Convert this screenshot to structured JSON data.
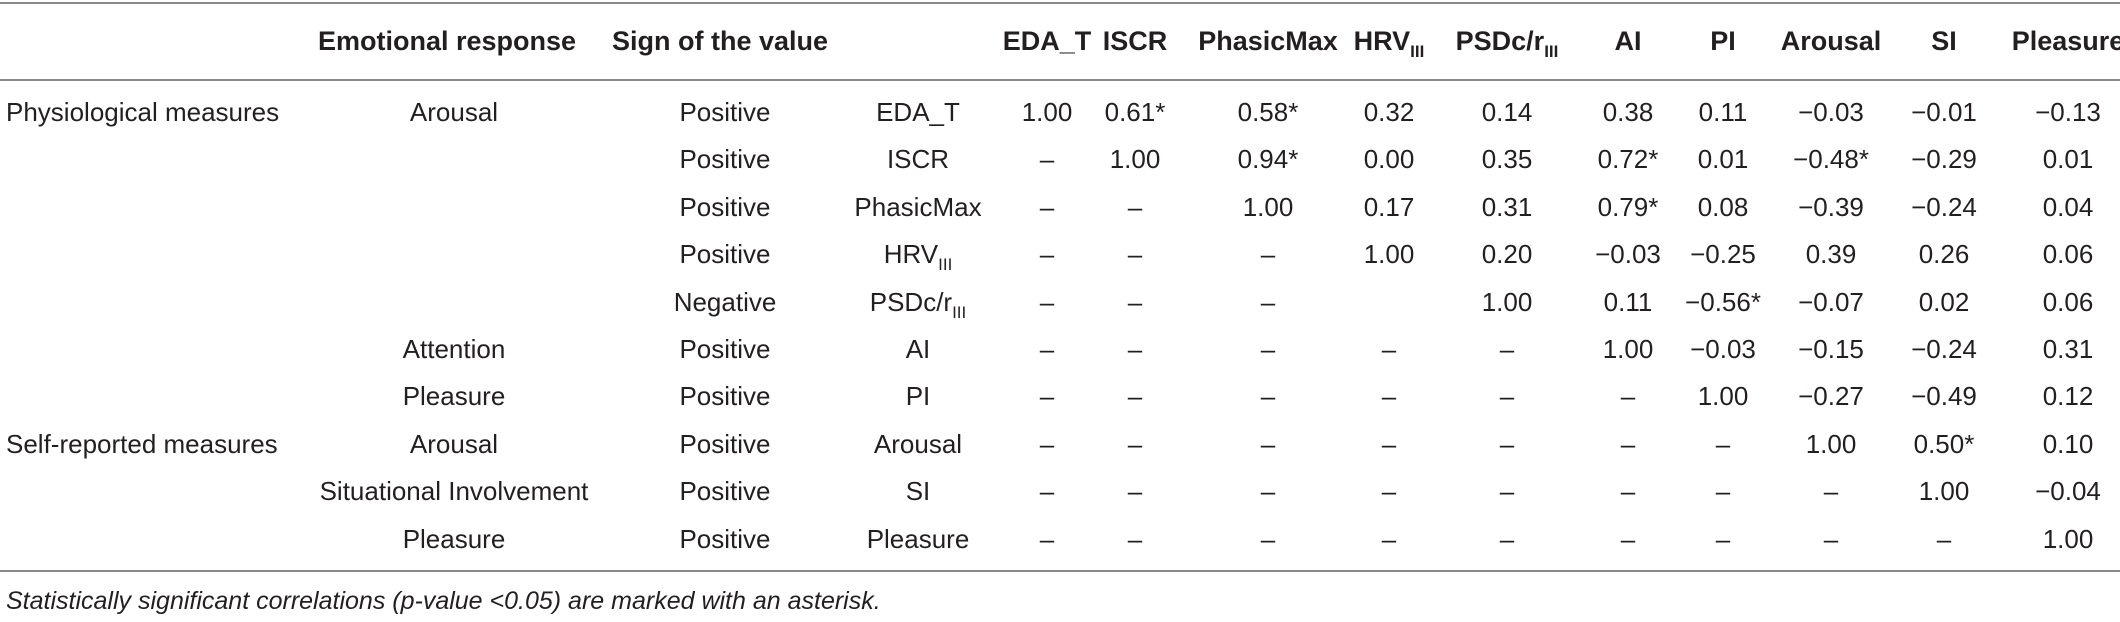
{
  "table": {
    "header": {
      "emotional_response": "Emotional response",
      "sign": "Sign of the value",
      "columns": [
        {
          "main": "EDA_T",
          "sub": ""
        },
        {
          "main": "ISCR",
          "sub": ""
        },
        {
          "main": "PhasicMax",
          "sub": ""
        },
        {
          "main": "HRV",
          "sub": "III"
        },
        {
          "main": "PSDc/r",
          "sub": "III"
        },
        {
          "main": "AI",
          "sub": ""
        },
        {
          "main": "PI",
          "sub": ""
        },
        {
          "main": "Arousal",
          "sub": ""
        },
        {
          "main": "SI",
          "sub": ""
        },
        {
          "main": "Pleasure",
          "sub": ""
        }
      ]
    },
    "rows": [
      {
        "group": "Physiological measures",
        "response": "Arousal",
        "sign": "Positive",
        "var": {
          "main": "EDA_T",
          "sub": ""
        },
        "values": [
          "1.00",
          "0.61*",
          "0.58*",
          "0.32",
          "0.14",
          "0.38",
          "0.11",
          "−0.03",
          "−0.01",
          "−0.13"
        ]
      },
      {
        "group": "",
        "response": "",
        "sign": "Positive",
        "var": {
          "main": "ISCR",
          "sub": ""
        },
        "values": [
          "–",
          "1.00",
          "0.94*",
          "0.00",
          "0.35",
          "0.72*",
          "0.01",
          "−0.48*",
          "−0.29",
          "0.01"
        ]
      },
      {
        "group": "",
        "response": "",
        "sign": "Positive",
        "var": {
          "main": "PhasicMax",
          "sub": ""
        },
        "values": [
          "–",
          "–",
          "1.00",
          "0.17",
          "0.31",
          "0.79*",
          "0.08",
          "−0.39",
          "−0.24",
          "0.04"
        ]
      },
      {
        "group": "",
        "response": "",
        "sign": "Positive",
        "var": {
          "main": "HRV",
          "sub": "III"
        },
        "values": [
          "–",
          "–",
          "–",
          "1.00",
          "0.20",
          "−0.03",
          "−0.25",
          "0.39",
          "0.26",
          "0.06"
        ]
      },
      {
        "group": "",
        "response": "",
        "sign": "Negative",
        "var": {
          "main": "PSDc/r",
          "sub": "III"
        },
        "values": [
          "–",
          "–",
          "–",
          "",
          "1.00",
          "0.11",
          "−0.56*",
          "−0.07",
          "0.02",
          "0.06"
        ]
      },
      {
        "group": "",
        "response": "Attention",
        "sign": "Positive",
        "var": {
          "main": "AI",
          "sub": ""
        },
        "values": [
          "–",
          "–",
          "–",
          "–",
          "–",
          "1.00",
          "−0.03",
          "−0.15",
          "−0.24",
          "0.31"
        ]
      },
      {
        "group": "",
        "response": "Pleasure",
        "sign": "Positive",
        "var": {
          "main": "PI",
          "sub": ""
        },
        "values": [
          "–",
          "–",
          "–",
          "–",
          "–",
          "–",
          "1.00",
          "−0.27",
          "−0.49",
          "0.12"
        ]
      },
      {
        "group": "Self-reported measures",
        "response": "Arousal",
        "sign": "Positive",
        "var": {
          "main": "Arousal",
          "sub": ""
        },
        "values": [
          "–",
          "–",
          "–",
          "–",
          "–",
          "–",
          "–",
          "1.00",
          "0.50*",
          "0.10"
        ]
      },
      {
        "group": "",
        "response": "Situational Involvement",
        "sign": "Positive",
        "var": {
          "main": "SI",
          "sub": ""
        },
        "values": [
          "–",
          "–",
          "–",
          "–",
          "–",
          "–",
          "–",
          "–",
          "1.00",
          "−0.04"
        ]
      },
      {
        "group": "",
        "response": "Pleasure",
        "sign": "Positive",
        "var": {
          "main": "Pleasure",
          "sub": ""
        },
        "values": [
          "–",
          "–",
          "–",
          "–",
          "–",
          "–",
          "–",
          "–",
          "–",
          "1.00"
        ]
      }
    ],
    "footnote": "Statistically significant correlations (p-value <0.05) are marked with an asterisk."
  }
}
